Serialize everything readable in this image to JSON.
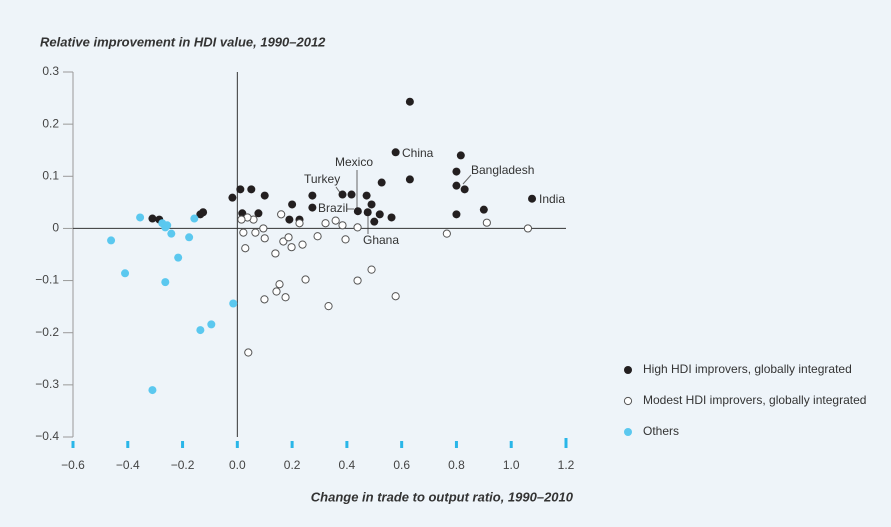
{
  "chart_data": {
    "type": "scatter",
    "ylabel": "Relative improvement in HDI value, 1990–2012",
    "xlabel": "Change in trade to output ratio, 1990–2010",
    "xlim": [
      -0.6,
      1.2
    ],
    "ylim": [
      -0.4,
      0.3
    ],
    "xticks": [
      {
        "value": -0.6,
        "label": "−0.6"
      },
      {
        "value": -0.4,
        "label": "−0.4"
      },
      {
        "value": -0.2,
        "label": "−0.2"
      },
      {
        "value": 0,
        "label": "0.0"
      },
      0.2,
      0.4,
      0.6,
      0.8,
      {
        "value": 1,
        "label": "1.0"
      },
      1.2
    ],
    "yticks": [
      {
        "value": -0.4,
        "label": "−0.4"
      },
      {
        "value": -0.3,
        "label": "−0.3"
      },
      {
        "value": -0.2,
        "label": "−0.2"
      },
      {
        "value": -0.1,
        "label": "−0.1"
      },
      0,
      0.1,
      0.2,
      0.3
    ],
    "annotations": [
      "China",
      "Mexico",
      "Turkey",
      "Brazil",
      "Ghana",
      "Bangladesh",
      "India"
    ],
    "series": [
      {
        "name": "High HDI improvers, globally integrated",
        "color": "#231f20",
        "marker": "filled",
        "x": [
          0.63,
          0.578,
          0.63,
          0.816,
          0.8,
          0.8,
          0.83,
          0.8,
          0.9,
          1.076,
          -0.31,
          -0.285,
          -0.135,
          -0.125,
          -0.018,
          0.011,
          0.051,
          0.1,
          0.018,
          0.077,
          0.2,
          0.19,
          0.227,
          0.274,
          0.274,
          0.384,
          0.417,
          0.44,
          0.472,
          0.49,
          0.527,
          0.52,
          0.476,
          0.563,
          0.5
        ],
        "values": [
          0.243,
          0.146,
          0.094,
          0.14,
          0.109,
          0.082,
          0.075,
          0.027,
          0.036,
          0.057,
          0.019,
          0.017,
          0.027,
          0.031,
          0.059,
          0.075,
          0.075,
          0.063,
          0.029,
          0.029,
          0.046,
          0.017,
          0.017,
          0.063,
          0.04,
          0.065,
          0.065,
          0.033,
          0.063,
          0.046,
          0.088,
          0.027,
          0.031,
          0.021,
          0.013
        ]
      },
      {
        "name": "Modest HDI improvers, globally integrated",
        "color": "#555555",
        "marker": "hollow",
        "x": [
          0.059,
          0.037,
          0.022,
          0.029,
          0.066,
          0.1,
          0.095,
          0.16,
          0.168,
          0.187,
          0.198,
          0.227,
          0.238,
          0.139,
          0.154,
          0.143,
          0.176,
          0.099,
          0.249,
          0.04,
          0.293,
          0.322,
          0.359,
          0.384,
          0.395,
          0.439,
          0.439,
          0.333,
          0.49,
          0.578,
          0.765,
          0.911,
          1.061,
          0.015
        ],
        "values": [
          0.017,
          0.021,
          -0.008,
          -0.038,
          -0.008,
          -0.019,
          0,
          0.027,
          -0.025,
          -0.017,
          -0.036,
          0.01,
          -0.031,
          -0.048,
          -0.107,
          -0.121,
          -0.132,
          -0.136,
          -0.098,
          -0.238,
          -0.015,
          0.01,
          0.015,
          0.006,
          -0.021,
          0.002,
          -0.1,
          -0.149,
          -0.079,
          -0.13,
          -0.01,
          0.011,
          0,
          0.017
        ]
      },
      {
        "name": "Others",
        "color": "#5bc8ef",
        "marker": "filled",
        "x": [
          -0.355,
          -0.274,
          -0.263,
          -0.256,
          -0.241,
          -0.461,
          -0.176,
          -0.157,
          -0.41,
          -0.216,
          -0.263,
          -0.095,
          -0.135,
          -0.015,
          -0.31
        ],
        "values": [
          0.021,
          0.01,
          0.002,
          0.006,
          -0.01,
          -0.023,
          -0.017,
          0.019,
          -0.086,
          -0.056,
          -0.103,
          -0.184,
          -0.195,
          -0.144,
          -0.31
        ]
      }
    ]
  }
}
